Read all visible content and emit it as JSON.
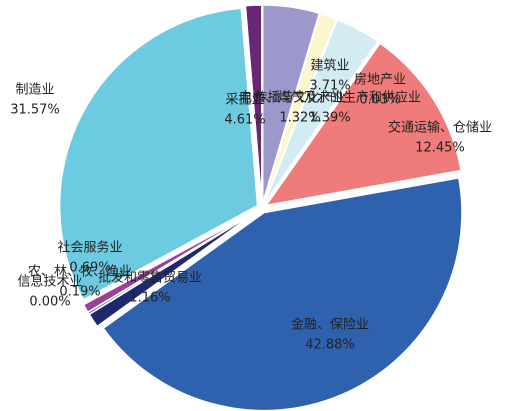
{
  "chart_data": {
    "type": "pie",
    "categories": [
      "采掘业",
      "电力、煤气及水的生产和供应业",
      "建筑业",
      "房地产业",
      "交通运输、仓储业",
      "金融、保险业",
      "批发和零售贸易业",
      "信息技术业",
      "农、林、牧、渔业",
      "社会服务业",
      "制造业",
      "传播与文化产业"
    ],
    "values": [
      4.61,
      1.39,
      3.71,
      0.03,
      12.45,
      42.88,
      1.16,
      0.0,
      0.19,
      0.69,
      31.57,
      1.32
    ],
    "value_labels": [
      "4.61%",
      "1.39%",
      "3.71%",
      "0.03%",
      "12.45%",
      "42.88%",
      "1.16%",
      "0.00%",
      "0.19%",
      "0.69%",
      "31.57%",
      "1.32%"
    ],
    "colors": [
      "#9d98cc",
      "#fbf6cc",
      "#d3ebf2",
      "#c6e3ee",
      "#ef7b7b",
      "#2f62ae",
      "#1f2a6c",
      "#7a3f8e",
      "#3c5aa0",
      "#9b3f99",
      "#6ccbe0",
      "#6a2676"
    ]
  }
}
